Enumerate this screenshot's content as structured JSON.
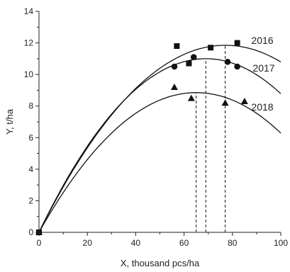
{
  "chart_data": {
    "type": "scatter",
    "xlabel": "X, thousand pcs/ha",
    "ylabel": "Y, t/ha",
    "xlim": [
      0,
      100
    ],
    "ylim": [
      0,
      14
    ],
    "xticks": [
      0,
      20,
      40,
      60,
      80,
      100
    ],
    "yticks": [
      0,
      2,
      4,
      6,
      8,
      10,
      12,
      14
    ],
    "grid": false,
    "series": [
      {
        "name": "2016",
        "marker": "square",
        "points": [
          [
            0,
            0
          ],
          [
            57,
            11.8
          ],
          [
            62,
            10.7
          ],
          [
            71,
            11.7
          ],
          [
            82,
            12.0
          ]
        ],
        "fit": {
          "peak_x": 77,
          "peak_y": 11.85
        }
      },
      {
        "name": "2017",
        "marker": "circle",
        "points": [
          [
            0,
            0
          ],
          [
            56,
            10.5
          ],
          [
            64,
            11.1
          ],
          [
            78,
            10.8
          ],
          [
            82,
            10.5
          ]
        ],
        "fit": {
          "peak_x": 69,
          "peak_y": 11.0
        }
      },
      {
        "name": "2018",
        "marker": "triangle",
        "points": [
          [
            0,
            0
          ],
          [
            56,
            9.2
          ],
          [
            63,
            8.5
          ],
          [
            77,
            8.2
          ],
          [
            85,
            8.3
          ]
        ],
        "fit": {
          "peak_x": 65,
          "peak_y": 8.85
        }
      }
    ],
    "optimum_lines_x": [
      65,
      69,
      77
    ]
  }
}
